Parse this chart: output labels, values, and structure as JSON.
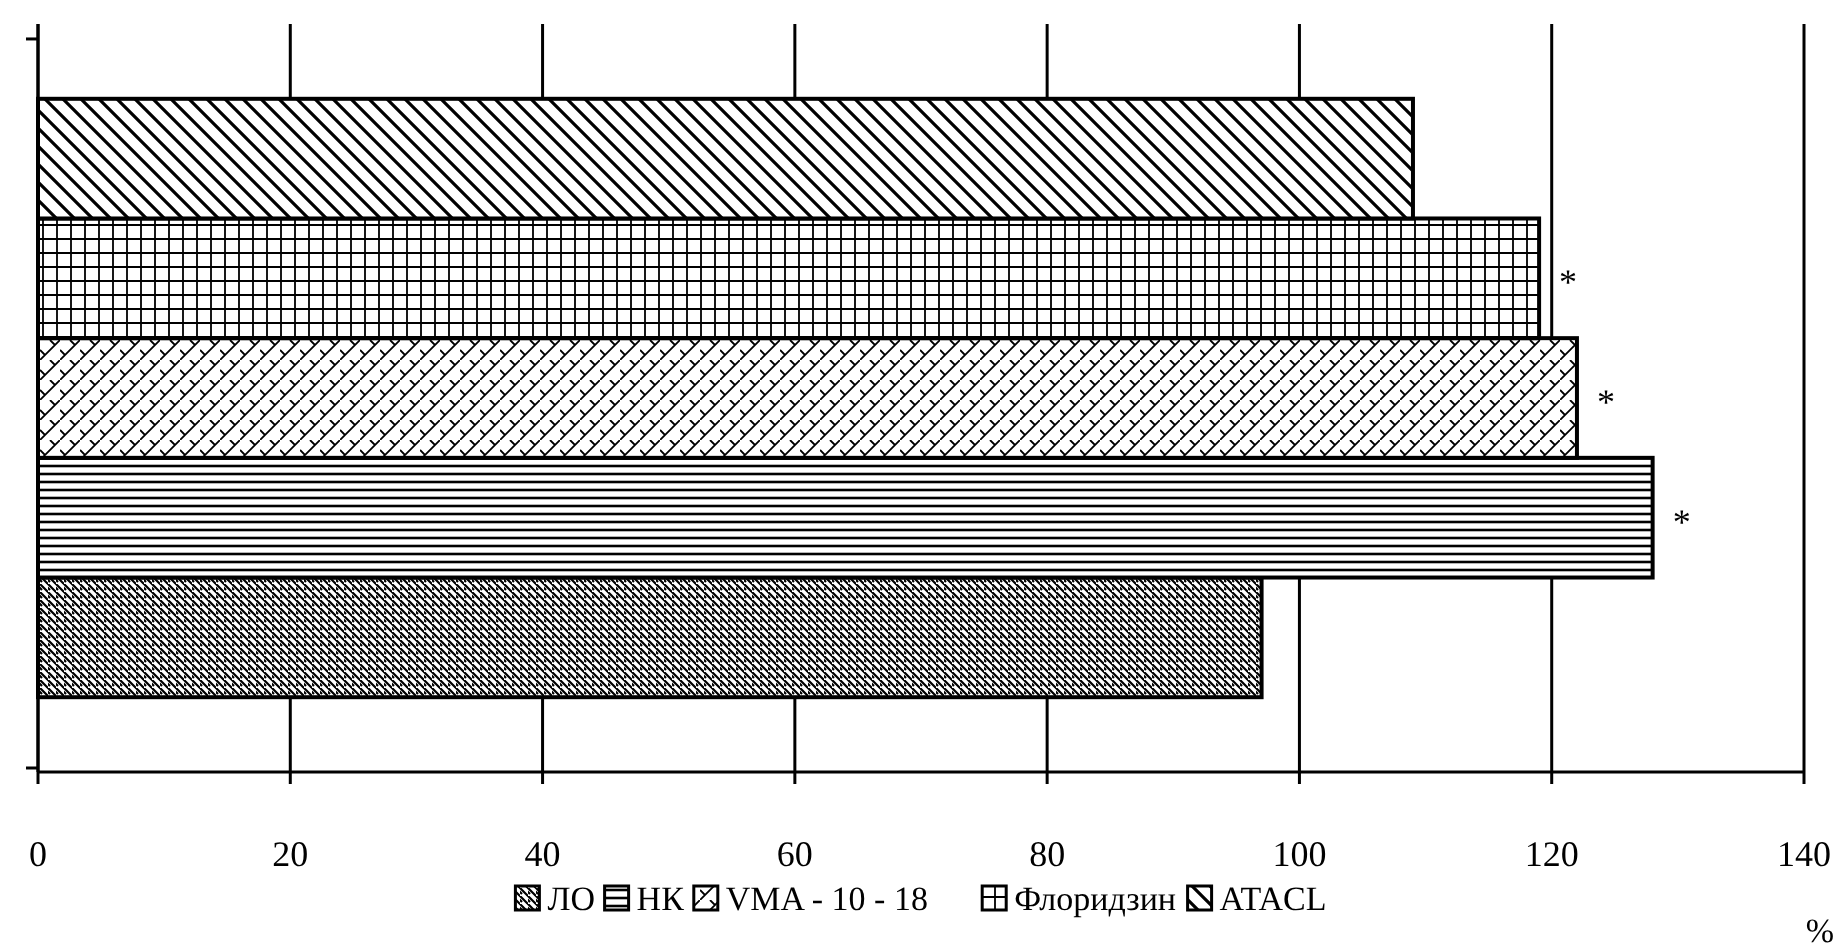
{
  "chart_data": {
    "type": "bar",
    "orientation": "horizontal",
    "categories": [
      null
    ],
    "xlabel": "%",
    "xlim": [
      0,
      140
    ],
    "xticks": [
      0,
      20,
      40,
      60,
      80,
      100,
      120,
      140
    ],
    "grid": "x",
    "legend": "bottom",
    "series": [
      {
        "name": "ЛО",
        "color": "#000000",
        "values": [
          97
        ],
        "value_labels": [
          null
        ]
      },
      {
        "name": "НК",
        "color": "#000000",
        "values": [
          128
        ],
        "value_labels": [
          "*"
        ]
      },
      {
        "name": "VMA -  10 - 18",
        "color": "#000000",
        "values": [
          122
        ],
        "value_labels": [
          "*"
        ]
      },
      {
        "name": "Флоридзин",
        "color": "#000000",
        "values": [
          119
        ],
        "value_labels": [
          "*"
        ]
      },
      {
        "name": "ATACL",
        "color": "#000000",
        "values": [
          109
        ],
        "value_labels": [
          null
        ]
      }
    ]
  }
}
